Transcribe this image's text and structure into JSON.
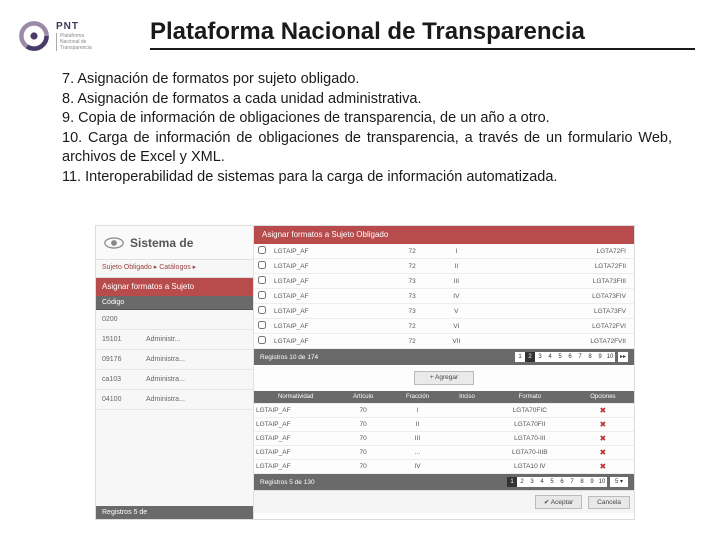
{
  "logo": {
    "text": "PNT"
  },
  "title": "Plataforma Nacional de Transparencia",
  "items": [
    "7. Asignación de formatos por sujeto obligado.",
    "8. Asignación de formatos a cada unidad administrativa.",
    "9. Copia de información de obligaciones de transparencia, de un año a otro.",
    "10. Carga de información de obligaciones de transparencia, a través de un formulario Web, archivos de Excel y XML.",
    "11. Interoperabilidad de sistemas para la carga de información automatizada."
  ],
  "screenshot": {
    "left": {
      "header": "Sistema de",
      "breadcrumb": "Sujeto Obligado ▸ Catálogos ▸",
      "assign_bar": "Asignar formatos a Sujeto",
      "table_header": "Código",
      "rows": [
        {
          "code": "0200",
          "desc": ""
        },
        {
          "code": "15101",
          "desc": "Administr..."
        },
        {
          "code": "09176",
          "desc": "Administra..."
        },
        {
          "code": "ca103",
          "desc": "Administra..."
        },
        {
          "code": "04100",
          "desc": "Administra..."
        }
      ],
      "footer": "Registros 5 de"
    },
    "right": {
      "title": "Asignar formatos a Sujeto Obligado",
      "upper_rows": [
        {
          "c1": "LGTAIP_AF",
          "c2": "72",
          "c3": "I",
          "c4": "LGTA72FI"
        },
        {
          "c1": "LGTAIP_AF",
          "c2": "72",
          "c3": "II",
          "c4": "LGTA72FII"
        },
        {
          "c1": "LGTAIP_AF",
          "c2": "73",
          "c3": "III",
          "c4": "LGTA73FIII"
        },
        {
          "c1": "LGTAIP_AF",
          "c2": "73",
          "c3": "IV",
          "c4": "LGTA73FIV"
        },
        {
          "c1": "LGTAIP_AF",
          "c2": "73",
          "c3": "V",
          "c4": "LGTA73FV"
        },
        {
          "c1": "LGTAIP_AF",
          "c2": "72",
          "c3": "VI",
          "c4": "LGTA72FVI"
        },
        {
          "c1": "LGTAIP_AF",
          "c2": "72",
          "c3": "VII",
          "c4": "LGTA72FVII"
        }
      ],
      "pager1": {
        "label": "Registros 10 de 174",
        "active": 2,
        "pages": [
          "1",
          "2",
          "3",
          "4",
          "5",
          "6",
          "7",
          "8",
          "9",
          "10"
        ],
        "last": "▸▸"
      },
      "add_label": "+ Agregar",
      "headers2": [
        "Normatividad",
        "Artículo",
        "Fracción",
        "Inciso",
        "Formato",
        "Opciones"
      ],
      "lower_rows": [
        {
          "c1": "LGTAIP_AF",
          "c2": "70",
          "c3": "I",
          "c4": "",
          "c5": "LGTA70FIC"
        },
        {
          "c1": "LGTAIP_AF",
          "c2": "70",
          "c3": "II",
          "c4": "",
          "c5": "LGTA70FII"
        },
        {
          "c1": "LGTAIP_AF",
          "c2": "70",
          "c3": "III",
          "c4": "",
          "c5": "LGTA70-III"
        },
        {
          "c1": "LGTAIP_AF",
          "c2": "70",
          "c3": "...",
          "c4": "",
          "c5": "LGTA70-IIIB"
        },
        {
          "c1": "LGTAIP_AF",
          "c2": "70",
          "c3": "IV",
          "c4": "",
          "c5": "LGTA10 IV"
        }
      ],
      "pager2": {
        "label": "Registros 5 de 130",
        "active": 1,
        "pages": [
          "1",
          "2",
          "3",
          "4",
          "5",
          "6",
          "7",
          "8",
          "9",
          "10"
        ],
        "perpage": "5 ▾"
      },
      "buttons": {
        "accept": "✔ Aceptar",
        "cancel": "Cancela"
      }
    }
  },
  "colors": {
    "title_underline": "#1a1a1a",
    "accent_red": "#b84c4c",
    "grey_header": "#6a6a6a",
    "page_bg": "#ffffff"
  }
}
